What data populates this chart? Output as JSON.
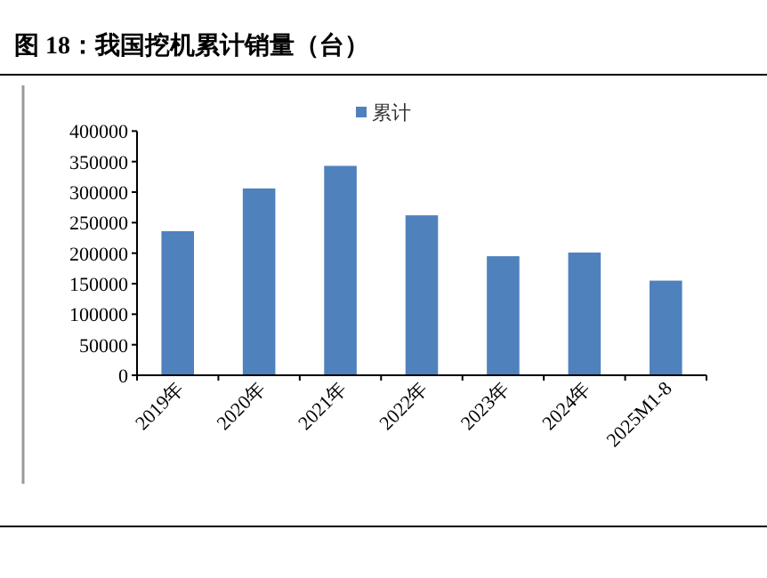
{
  "chart_data": {
    "type": "bar",
    "title": "图 18：我国挖机累计销量（台）",
    "categories": [
      "2019年",
      "2020年",
      "2021年",
      "2022年",
      "2023年",
      "2024年",
      "2025M1-8"
    ],
    "series": [
      {
        "name": "累计",
        "color": "#4f81bd",
        "values": [
          236000,
          306000,
          343000,
          262000,
          195000,
          201000,
          155000
        ]
      }
    ],
    "ylim": [
      0,
      400000
    ],
    "yticks": [
      0,
      50000,
      100000,
      150000,
      200000,
      250000,
      300000,
      350000,
      400000
    ],
    "legend": "top",
    "grid": false
  }
}
